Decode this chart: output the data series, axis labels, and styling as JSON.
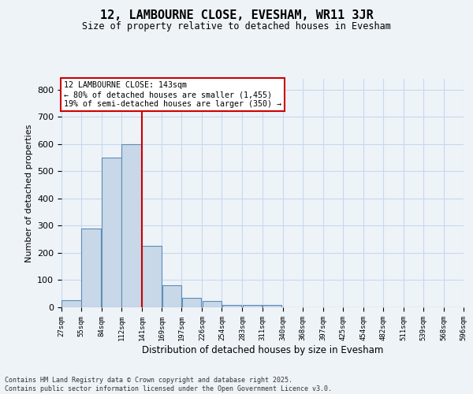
{
  "title": "12, LAMBOURNE CLOSE, EVESHAM, WR11 3JR",
  "subtitle": "Size of property relative to detached houses in Evesham",
  "xlabel": "Distribution of detached houses by size in Evesham",
  "ylabel": "Number of detached properties",
  "bar_left_edges": [
    27,
    55,
    84,
    112,
    141,
    169,
    197,
    226,
    254,
    283,
    311,
    340,
    368,
    397,
    425,
    454,
    482,
    511,
    539,
    568
  ],
  "bar_heights": [
    25,
    290,
    550,
    600,
    225,
    80,
    35,
    22,
    10,
    10,
    8,
    0,
    0,
    0,
    0,
    0,
    0,
    0,
    0,
    0
  ],
  "bin_width": 28,
  "bar_color": "#c8d8e8",
  "bar_edge_color": "#5b8db8",
  "vline_x": 141,
  "vline_color": "#cc0000",
  "xlim": [
    27,
    596
  ],
  "ylim": [
    0,
    840
  ],
  "yticks": [
    0,
    100,
    200,
    300,
    400,
    500,
    600,
    700,
    800
  ],
  "xtick_labels": [
    "27sqm",
    "55sqm",
    "84sqm",
    "112sqm",
    "141sqm",
    "169sqm",
    "197sqm",
    "226sqm",
    "254sqm",
    "283sqm",
    "311sqm",
    "340sqm",
    "368sqm",
    "397sqm",
    "425sqm",
    "454sqm",
    "482sqm",
    "511sqm",
    "539sqm",
    "568sqm",
    "596sqm"
  ],
  "xtick_positions": [
    27,
    55,
    84,
    112,
    141,
    169,
    197,
    226,
    254,
    283,
    311,
    340,
    368,
    397,
    425,
    454,
    482,
    511,
    539,
    568,
    596
  ],
  "annotation_title": "12 LAMBOURNE CLOSE: 143sqm",
  "annotation_line1": "← 80% of detached houses are smaller (1,455)",
  "annotation_line2": "19% of semi-detached houses are larger (350) →",
  "box_color": "#ffffff",
  "box_edge_color": "#cc0000",
  "grid_color": "#c8d8ee",
  "background_color": "#eef3f8",
  "footer_line1": "Contains HM Land Registry data © Crown copyright and database right 2025.",
  "footer_line2": "Contains public sector information licensed under the Open Government Licence v3.0."
}
